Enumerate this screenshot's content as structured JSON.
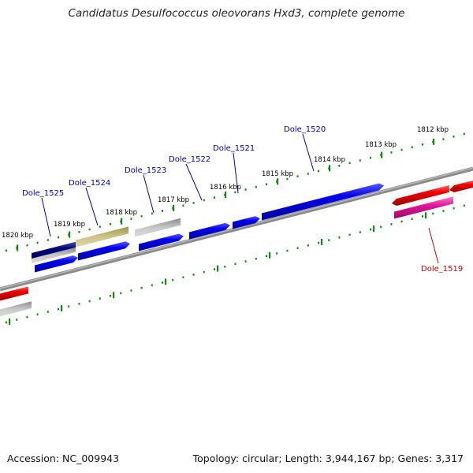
{
  "title": "Candidatus Desulfococcus oleovorans Hxd3, complete genome",
  "footer": {
    "accession": "Accession: NC_009943",
    "summary": "Topology: circular; Length: 3,944,167 bp; Genes: 3,317"
  },
  "colors": {
    "backbone": "#7f7f7f",
    "tick": "#128a12",
    "label_forward": "#0000b0",
    "label_reverse": "#cc0000",
    "gene_forward": "#0000ee",
    "gene_reverse": "#ee0000",
    "gene_dark": "#000080",
    "gene_olive": "#b5ab66",
    "gene_gray": "#a9a9a9",
    "gene_pink": "#e0189a"
  },
  "chart_data": {
    "type": "genome_map",
    "scale_ticks_kbp": [
      {
        "value": 1812,
        "label": "1812 kbp"
      },
      {
        "value": 1813,
        "label": "1813 kbp"
      },
      {
        "value": 1814,
        "label": "1814 kbp"
      },
      {
        "value": 1815,
        "label": "1815 kbp"
      },
      {
        "value": 1816,
        "label": "1816 kbp"
      },
      {
        "value": 1817,
        "label": "1817 kbp"
      },
      {
        "value": 1818,
        "label": "1818 kbp"
      },
      {
        "value": 1819,
        "label": "1819 kbp"
      },
      {
        "value": 1820,
        "label": "1820 kbp"
      }
    ],
    "gene_labels": [
      {
        "name": "Dole_1520",
        "strand": "forward"
      },
      {
        "name": "Dole_1521",
        "strand": "forward"
      },
      {
        "name": "Dole_1522",
        "strand": "forward"
      },
      {
        "name": "Dole_1523",
        "strand": "forward"
      },
      {
        "name": "Dole_1524",
        "strand": "forward"
      },
      {
        "name": "Dole_1525",
        "strand": "forward"
      },
      {
        "name": "Dole_1519",
        "strand": "reverse"
      }
    ]
  }
}
